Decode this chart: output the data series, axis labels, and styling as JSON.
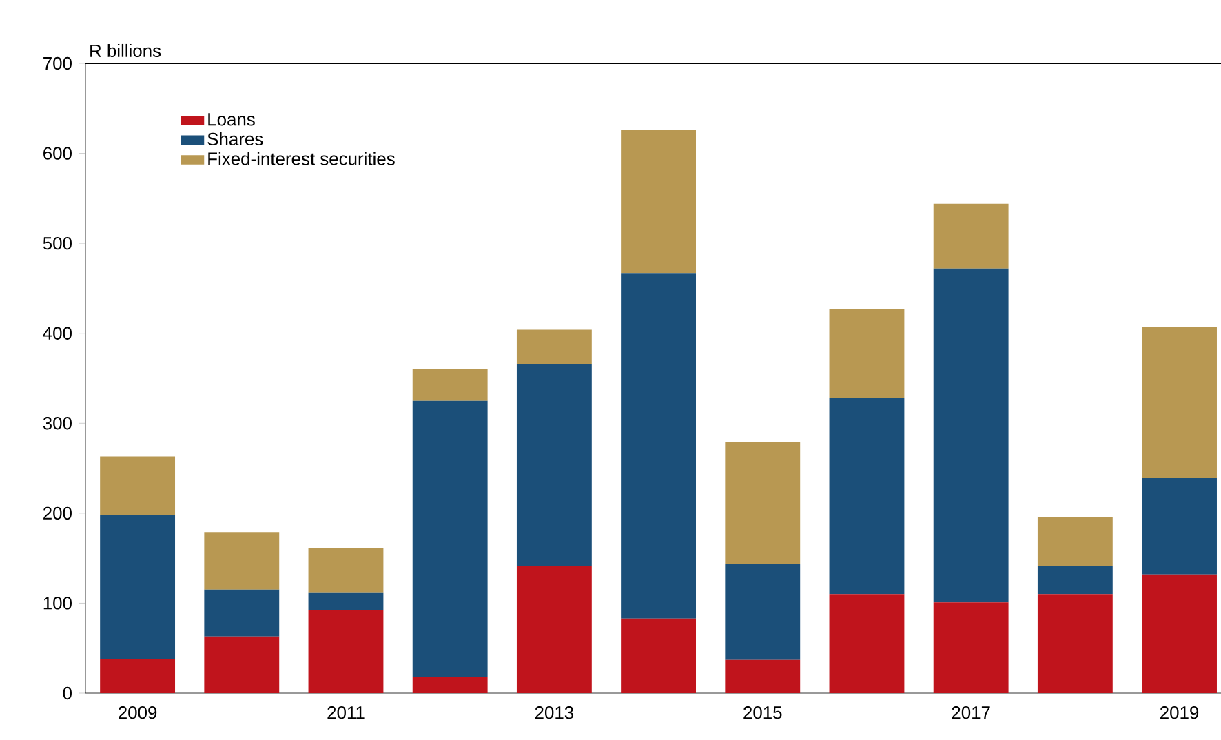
{
  "chart_data": {
    "type": "bar",
    "stacked": true,
    "ylabel": "R billions",
    "categories": [
      "2009",
      null,
      "2011",
      null,
      "2013",
      null,
      "2015",
      null,
      "2017",
      null,
      "2019"
    ],
    "series": [
      {
        "name": "Loans",
        "color": "#c0141c",
        "values": [
          38,
          63,
          92,
          18,
          141,
          83,
          37,
          110,
          101,
          110,
          132
        ]
      },
      {
        "name": "Shares",
        "color": "#1b4f79",
        "values": [
          160,
          52,
          20,
          307,
          225,
          384,
          107,
          218,
          371,
          31,
          107
        ]
      },
      {
        "name": "Fixed-interest securities",
        "color": "#b89852",
        "values": [
          65,
          64,
          49,
          35,
          38,
          159,
          135,
          99,
          72,
          55,
          168
        ]
      }
    ],
    "ylim": [
      0,
      700
    ],
    "yticks": [
      0,
      100,
      200,
      300,
      400,
      500,
      600,
      700
    ],
    "grid": false,
    "legend": "top left"
  }
}
